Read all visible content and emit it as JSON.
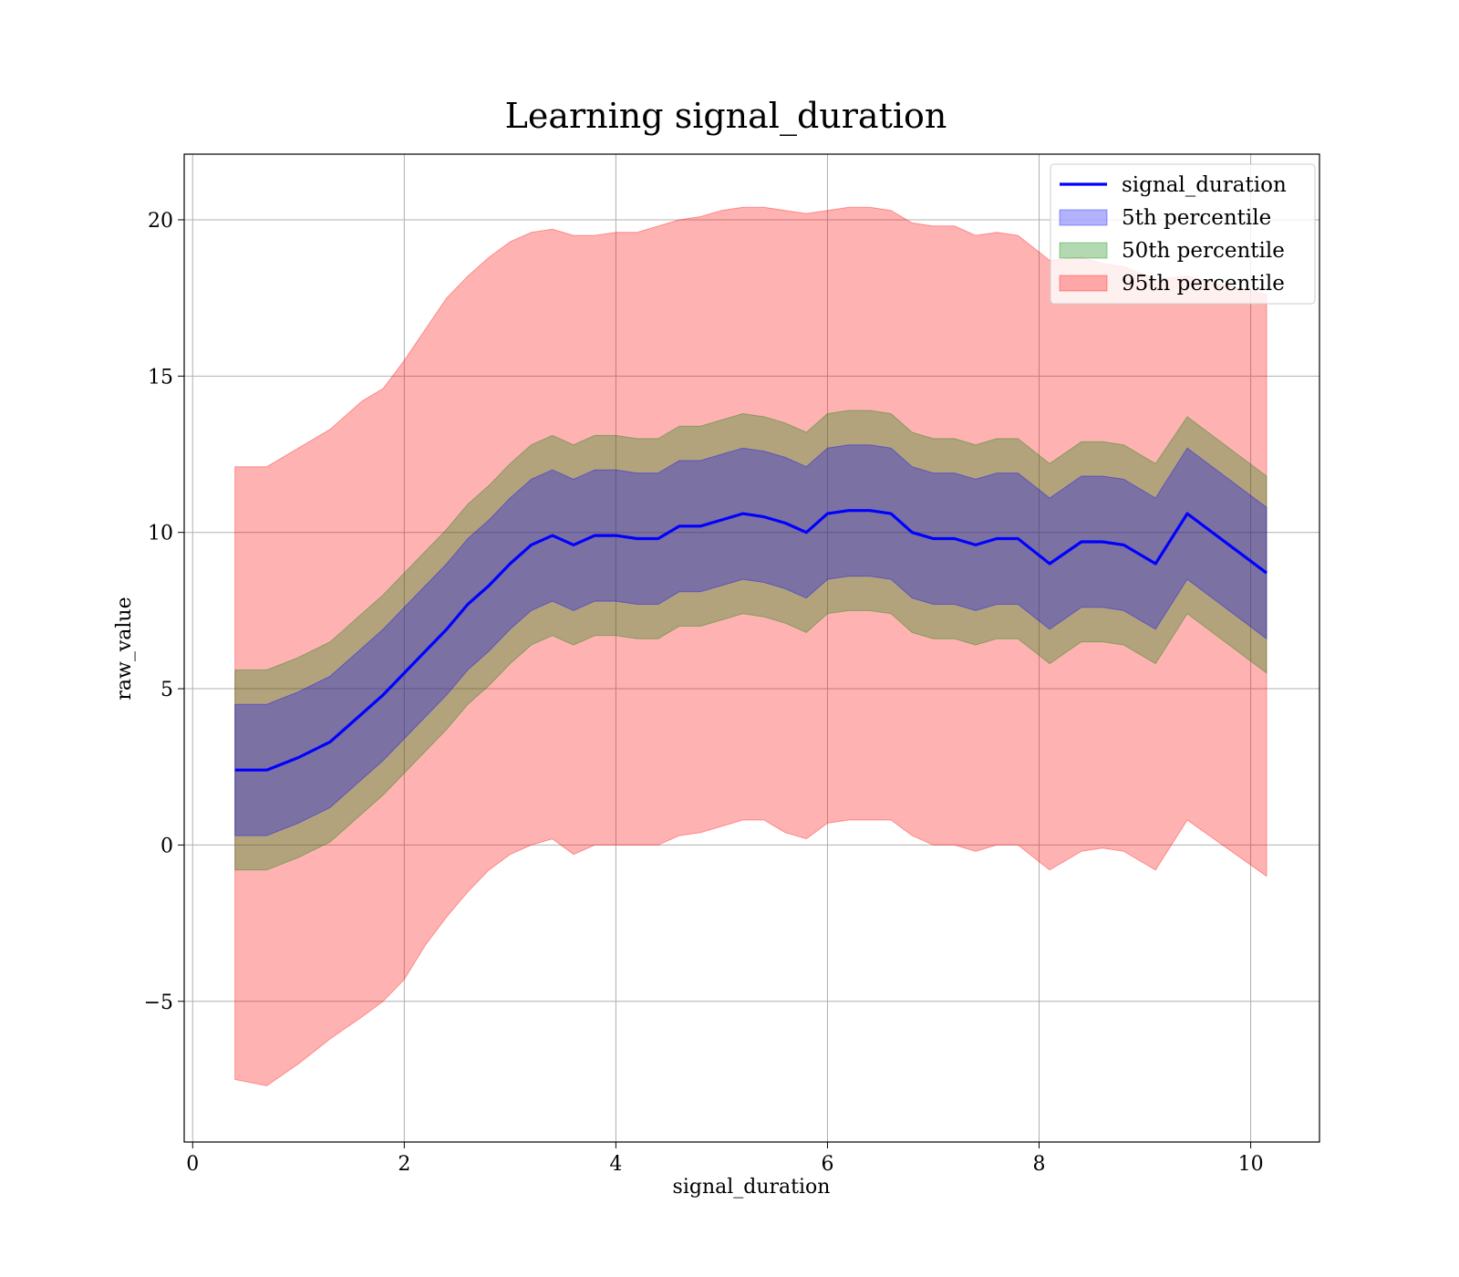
{
  "chart_data": {
    "type": "line",
    "title": "Learning signal_duration",
    "xlabel": "signal_duration",
    "ylabel": "raw_value",
    "xlim": [
      -0.08,
      10.65
    ],
    "ylim": [
      -9.5,
      22.1
    ],
    "xticks": [
      0,
      2,
      4,
      6,
      8,
      10
    ],
    "yticks": [
      -5,
      0,
      5,
      10,
      15,
      20
    ],
    "xtick_labels": [
      "0",
      "2",
      "4",
      "6",
      "8",
      "10"
    ],
    "ytick_labels": [
      "−5",
      "0",
      "5",
      "10",
      "15",
      "20"
    ],
    "grid": true,
    "legend_position": "top-right",
    "x": [
      0.4,
      0.7,
      1.0,
      1.3,
      1.6,
      1.8,
      2.0,
      2.2,
      2.4,
      2.6,
      2.8,
      3.0,
      3.2,
      3.4,
      3.6,
      3.8,
      4.0,
      4.2,
      4.4,
      4.6,
      4.8,
      5.0,
      5.2,
      5.4,
      5.6,
      5.8,
      6.0,
      6.2,
      6.4,
      6.6,
      6.8,
      7.0,
      7.2,
      7.4,
      7.6,
      7.8,
      8.1,
      8.4,
      8.6,
      8.8,
      9.1,
      9.4,
      10.15
    ],
    "series": [
      {
        "name": "signal_duration",
        "kind": "line",
        "color": "#0000ff",
        "values": [
          2.4,
          2.4,
          2.8,
          3.3,
          4.2,
          4.8,
          5.5,
          6.2,
          6.9,
          7.7,
          8.3,
          9.0,
          9.6,
          9.9,
          9.6,
          9.9,
          9.9,
          9.8,
          9.8,
          10.2,
          10.2,
          10.4,
          10.6,
          10.5,
          10.3,
          10.0,
          10.6,
          10.7,
          10.7,
          10.6,
          10.0,
          9.8,
          9.8,
          9.6,
          9.8,
          9.8,
          9.0,
          9.7,
          9.7,
          9.6,
          9.0,
          10.6,
          8.7
        ]
      },
      {
        "name": "5th percentile",
        "kind": "band",
        "color": "#0000ff",
        "lower": [
          0.3,
          0.3,
          0.7,
          1.2,
          2.1,
          2.7,
          3.4,
          4.1,
          4.8,
          5.6,
          6.2,
          6.9,
          7.5,
          7.8,
          7.5,
          7.8,
          7.8,
          7.7,
          7.7,
          8.1,
          8.1,
          8.3,
          8.5,
          8.4,
          8.2,
          7.9,
          8.5,
          8.6,
          8.6,
          8.5,
          7.9,
          7.7,
          7.7,
          7.5,
          7.7,
          7.7,
          6.9,
          7.6,
          7.6,
          7.5,
          6.9,
          8.5,
          6.6
        ],
        "upper": [
          4.5,
          4.5,
          4.9,
          5.4,
          6.3,
          6.9,
          7.6,
          8.3,
          9.0,
          9.8,
          10.4,
          11.1,
          11.7,
          12.0,
          11.7,
          12.0,
          12.0,
          11.9,
          11.9,
          12.3,
          12.3,
          12.5,
          12.7,
          12.6,
          12.4,
          12.1,
          12.7,
          12.8,
          12.8,
          12.7,
          12.1,
          11.9,
          11.9,
          11.7,
          11.9,
          11.9,
          11.1,
          11.8,
          11.8,
          11.7,
          11.1,
          12.7,
          10.8
        ]
      },
      {
        "name": "50th percentile",
        "kind": "band",
        "color": "#008000",
        "lower": [
          -0.8,
          -0.8,
          -0.4,
          0.1,
          1.0,
          1.6,
          2.3,
          3.0,
          3.7,
          4.5,
          5.1,
          5.8,
          6.4,
          6.7,
          6.4,
          6.7,
          6.7,
          6.6,
          6.6,
          7.0,
          7.0,
          7.2,
          7.4,
          7.3,
          7.1,
          6.8,
          7.4,
          7.5,
          7.5,
          7.4,
          6.8,
          6.6,
          6.6,
          6.4,
          6.6,
          6.6,
          5.8,
          6.5,
          6.5,
          6.4,
          5.8,
          7.4,
          5.5
        ],
        "upper": [
          5.6,
          5.6,
          6.0,
          6.5,
          7.4,
          8.0,
          8.7,
          9.4,
          10.1,
          10.9,
          11.5,
          12.2,
          12.8,
          13.1,
          12.8,
          13.1,
          13.1,
          13.0,
          13.0,
          13.4,
          13.4,
          13.6,
          13.8,
          13.7,
          13.5,
          13.2,
          13.8,
          13.9,
          13.9,
          13.8,
          13.2,
          13.0,
          13.0,
          12.8,
          13.0,
          13.0,
          12.2,
          12.9,
          12.9,
          12.8,
          12.2,
          13.7,
          11.8
        ]
      },
      {
        "name": "95th percentile",
        "kind": "band",
        "color": "#ff0000",
        "lower": [
          -7.5,
          -7.7,
          -7.0,
          -6.2,
          -5.5,
          -5.0,
          -4.3,
          -3.2,
          -2.3,
          -1.5,
          -0.8,
          -0.3,
          0.0,
          0.2,
          -0.3,
          0.0,
          0.0,
          0.0,
          0.0,
          0.3,
          0.4,
          0.6,
          0.8,
          0.8,
          0.4,
          0.2,
          0.7,
          0.8,
          0.8,
          0.8,
          0.3,
          0.0,
          0.0,
          -0.2,
          0.0,
          0.0,
          -0.8,
          -0.2,
          -0.1,
          -0.2,
          -0.8,
          0.8,
          -1.0
        ],
        "upper": [
          12.1,
          12.1,
          12.7,
          13.3,
          14.2,
          14.6,
          15.5,
          16.5,
          17.5,
          18.2,
          18.8,
          19.3,
          19.6,
          19.7,
          19.5,
          19.5,
          19.6,
          19.6,
          19.8,
          20.0,
          20.1,
          20.3,
          20.4,
          20.4,
          20.3,
          20.2,
          20.3,
          20.4,
          20.4,
          20.3,
          19.9,
          19.8,
          19.8,
          19.5,
          19.6,
          19.5,
          18.7,
          18.8,
          18.6,
          18.5,
          18.1,
          18.2,
          17.6
        ]
      }
    ]
  }
}
